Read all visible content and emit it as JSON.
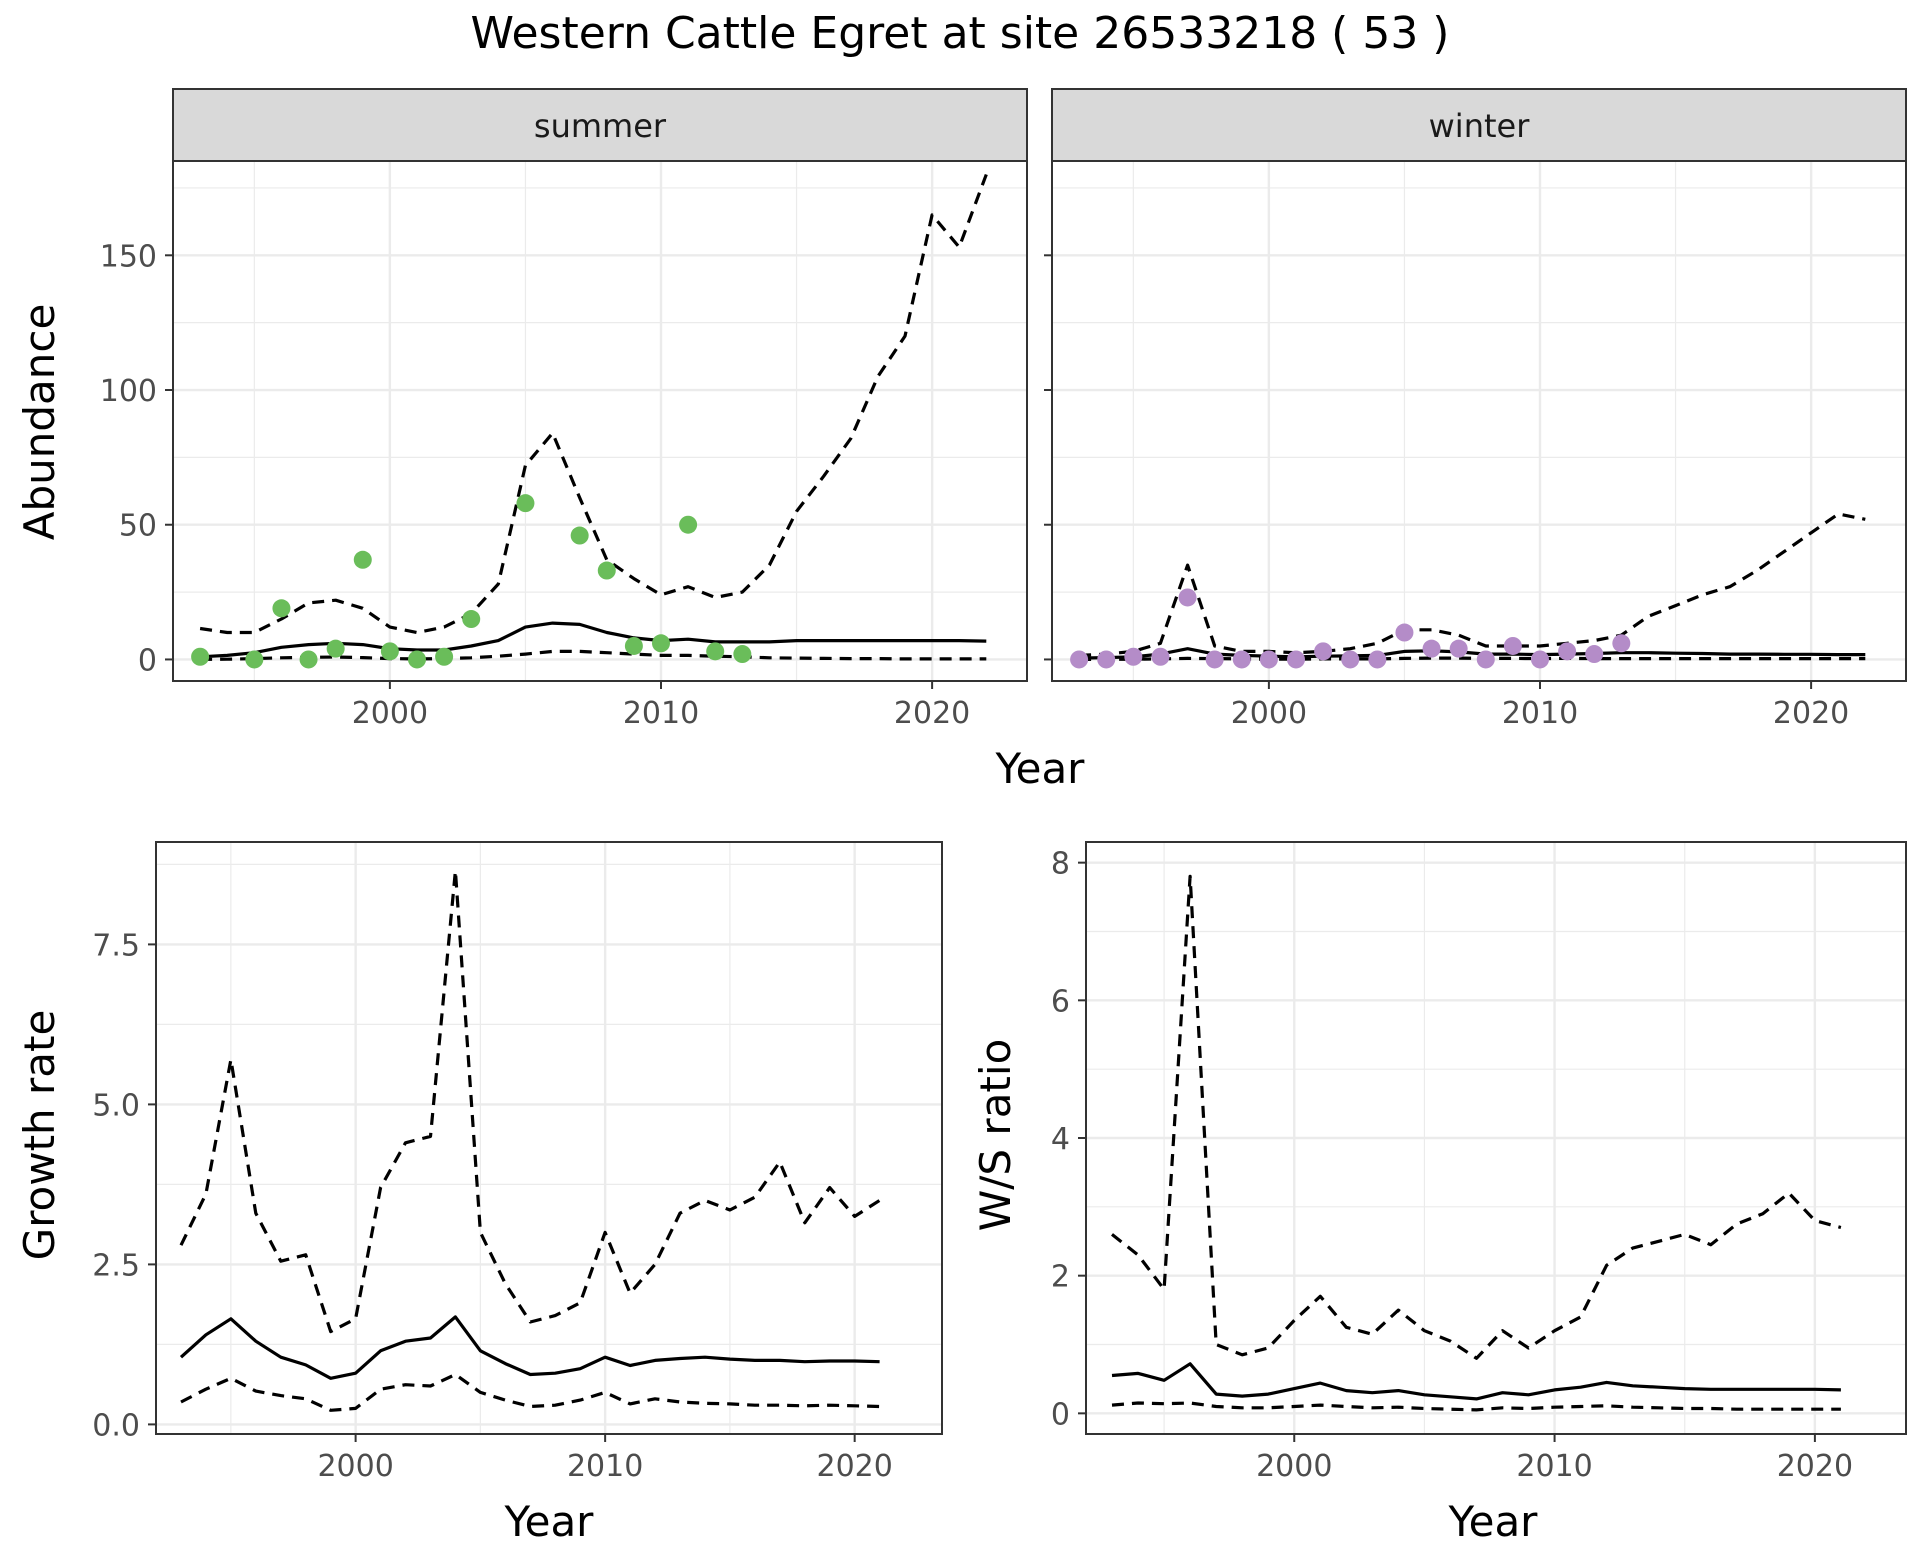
{
  "title": "Western Cattle Egret at site 26533218 ( 53 )",
  "colors": {
    "summer_points": "#6abd5a",
    "winter_points": "#b48cc8",
    "line": "#000000",
    "strip_fill": "#d9d9d9",
    "grid": "#ebebeb"
  },
  "chart_data": [
    {
      "type": "scatter",
      "panel": "summer",
      "xlabel": "Year",
      "ylabel": "Abundance",
      "xlim": [
        1992,
        2023.5
      ],
      "ylim": [
        -8,
        185
      ],
      "x_ticks": [
        2000,
        2010,
        2020
      ],
      "y_ticks": [
        0,
        50,
        100,
        150
      ],
      "grid": true,
      "points": {
        "x": [
          1993,
          1995,
          1996,
          1997,
          1998,
          1999,
          2000,
          2001,
          2002,
          2003,
          2005,
          2007,
          2008,
          2009,
          2010,
          2011,
          2012,
          2013
        ],
        "y": [
          1,
          0,
          19,
          0,
          4,
          37,
          3,
          0,
          1,
          15,
          58,
          46,
          33,
          5,
          6,
          50,
          3,
          2
        ]
      },
      "series": [
        {
          "role": "estimate",
          "style": "solid",
          "x": [
            1993,
            1994,
            1995,
            1996,
            1997,
            1998,
            1999,
            2000,
            2001,
            2002,
            2003,
            2004,
            2005,
            2006,
            2007,
            2008,
            2009,
            2010,
            2011,
            2012,
            2013,
            2014,
            2015,
            2016,
            2017,
            2018,
            2019,
            2020,
            2021,
            2022
          ],
          "y": [
            1,
            1.5,
            2.5,
            4.5,
            5.5,
            6,
            5.5,
            4,
            3.5,
            3.5,
            5,
            7,
            12,
            13.5,
            13,
            10,
            8,
            7,
            7.5,
            6.5,
            6.5,
            6.5,
            7,
            7,
            7,
            7,
            7,
            7,
            7,
            6.8
          ]
        },
        {
          "role": "upper",
          "style": "dashed",
          "x": [
            1993,
            1994,
            1995,
            1996,
            1997,
            1998,
            1999,
            2000,
            2001,
            2002,
            2003,
            2004,
            2005,
            2006,
            2007,
            2008,
            2009,
            2010,
            2011,
            2012,
            2013,
            2014,
            2015,
            2016,
            2017,
            2018,
            2019,
            2020,
            2021,
            2022
          ],
          "y": [
            11.5,
            10,
            10,
            15,
            21,
            22,
            19,
            12,
            10,
            12,
            17,
            28,
            72,
            84,
            60,
            37,
            30,
            24,
            27,
            23,
            25,
            35,
            55,
            68,
            82,
            105,
            120,
            165,
            153,
            180
          ]
        },
        {
          "role": "lower",
          "style": "dashed",
          "x": [
            1993,
            1994,
            1995,
            1996,
            1997,
            1998,
            1999,
            2000,
            2001,
            2002,
            2003,
            2004,
            2005,
            2006,
            2007,
            2008,
            2009,
            2010,
            2011,
            2012,
            2013,
            2014,
            2015,
            2016,
            2017,
            2018,
            2019,
            2020,
            2021,
            2022
          ],
          "y": [
            0,
            0.1,
            0.3,
            0.6,
            0.8,
            0.9,
            0.7,
            0.3,
            0.2,
            0.3,
            0.6,
            1.2,
            2,
            3,
            3,
            2.5,
            2,
            1.5,
            1.5,
            1.2,
            1,
            0.6,
            0.5,
            0.4,
            0.3,
            0.3,
            0.2,
            0.2,
            0.2,
            0.2
          ]
        }
      ]
    },
    {
      "type": "scatter",
      "panel": "winter",
      "xlabel": "Year",
      "ylabel": "Abundance",
      "xlim": [
        1992,
        2023.5
      ],
      "ylim": [
        -8,
        185
      ],
      "x_ticks": [
        2000,
        2010,
        2020
      ],
      "y_ticks": [
        0,
        50,
        100,
        150
      ],
      "grid": true,
      "points": {
        "x": [
          1993,
          1994,
          1995,
          1996,
          1997,
          1998,
          1999,
          2000,
          2001,
          2002,
          2003,
          2004,
          2005,
          2006,
          2007,
          2008,
          2009,
          2010,
          2011,
          2012,
          2013
        ],
        "y": [
          0,
          0,
          1,
          1,
          23,
          0,
          0,
          0,
          0,
          3,
          0,
          0,
          10,
          4,
          4,
          0,
          5,
          0,
          3,
          2,
          6
        ]
      },
      "series": [
        {
          "role": "estimate",
          "style": "solid",
          "x": [
            1993,
            1994,
            1995,
            1996,
            1997,
            1998,
            1999,
            2000,
            2001,
            2002,
            2003,
            2004,
            2005,
            2006,
            2007,
            2008,
            2009,
            2010,
            2011,
            2012,
            2013,
            2014,
            2015,
            2016,
            2017,
            2018,
            2019,
            2020,
            2021,
            2022
          ],
          "y": [
            0.5,
            0.7,
            1,
            2,
            4,
            2,
            1.5,
            1.2,
            1,
            1.2,
            1.3,
            1.5,
            3,
            3.2,
            2.8,
            2,
            2,
            1.8,
            2,
            2.2,
            2.5,
            2.5,
            2.3,
            2.2,
            2,
            2,
            1.9,
            1.9,
            1.8,
            1.8
          ]
        },
        {
          "role": "upper",
          "style": "dashed",
          "x": [
            1993,
            1994,
            1995,
            1996,
            1997,
            1998,
            1999,
            2000,
            2001,
            2002,
            2003,
            2004,
            2005,
            2006,
            2007,
            2008,
            2009,
            2010,
            2011,
            2012,
            2013,
            2014,
            2015,
            2016,
            2017,
            2018,
            2019,
            2020,
            2021,
            2022
          ],
          "y": [
            1.5,
            2,
            3,
            6,
            35,
            5,
            3,
            3,
            2.5,
            3,
            4,
            6,
            11,
            11,
            9,
            5,
            5,
            5,
            6,
            7,
            9,
            16,
            20,
            24,
            27,
            33,
            40,
            47,
            54,
            52
          ]
        },
        {
          "role": "lower",
          "style": "dashed",
          "x": [
            1993,
            1994,
            1995,
            1996,
            1997,
            1998,
            1999,
            2000,
            2001,
            2002,
            2003,
            2004,
            2005,
            2006,
            2007,
            2008,
            2009,
            2010,
            2011,
            2012,
            2013,
            2014,
            2015,
            2016,
            2017,
            2018,
            2019,
            2020,
            2021,
            2022
          ],
          "y": [
            0,
            0,
            0.1,
            0.2,
            0.4,
            0.3,
            0.2,
            0.1,
            0.1,
            0.2,
            0.2,
            0.2,
            0.4,
            0.5,
            0.5,
            0.4,
            0.4,
            0.3,
            0.4,
            0.3,
            0.3,
            0.3,
            0.3,
            0.3,
            0.3,
            0.3,
            0.3,
            0.3,
            0.3,
            0.3
          ]
        }
      ]
    },
    {
      "type": "line",
      "panel": "growth",
      "xlabel": "Year",
      "ylabel": "Growth rate",
      "xlim": [
        1992,
        2023.5
      ],
      "ylim": [
        -0.15,
        9.1
      ],
      "x_ticks": [
        2000,
        2010,
        2020
      ],
      "y_ticks": [
        0.0,
        2.5,
        5.0,
        7.5
      ],
      "y_tick_labels": [
        "0.0",
        "2.5",
        "5.0",
        "7.5"
      ],
      "grid": true,
      "series": [
        {
          "role": "estimate",
          "style": "solid",
          "x": [
            1993,
            1994,
            1995,
            1996,
            1997,
            1998,
            1999,
            2000,
            2001,
            2002,
            2003,
            2004,
            2005,
            2006,
            2007,
            2008,
            2009,
            2010,
            2011,
            2012,
            2013,
            2014,
            2015,
            2016,
            2017,
            2018,
            2019,
            2020,
            2021
          ],
          "y": [
            1.05,
            1.4,
            1.65,
            1.3,
            1.05,
            0.93,
            0.72,
            0.8,
            1.15,
            1.3,
            1.35,
            1.68,
            1.15,
            0.95,
            0.78,
            0.8,
            0.87,
            1.05,
            0.92,
            1.0,
            1.03,
            1.05,
            1.02,
            1.0,
            1.0,
            0.98,
            0.99,
            0.99,
            0.98
          ]
        },
        {
          "role": "upper",
          "style": "dashed",
          "x": [
            1993,
            1994,
            1995,
            1996,
            1997,
            1998,
            1999,
            2000,
            2001,
            2002,
            2003,
            2004,
            2005,
            2006,
            2007,
            2008,
            2009,
            2010,
            2011,
            2012,
            2013,
            2014,
            2015,
            2016,
            2017,
            2018,
            2019,
            2020,
            2021
          ],
          "y": [
            2.8,
            3.6,
            5.7,
            3.3,
            2.55,
            2.65,
            1.45,
            1.65,
            3.7,
            4.4,
            4.5,
            8.65,
            3.0,
            2.2,
            1.6,
            1.7,
            1.9,
            3.0,
            2.05,
            2.5,
            3.3,
            3.5,
            3.35,
            3.55,
            4.1,
            3.15,
            3.7,
            3.25,
            3.5
          ]
        },
        {
          "role": "lower",
          "style": "dashed",
          "x": [
            1993,
            1994,
            1995,
            1996,
            1997,
            1998,
            1999,
            2000,
            2001,
            2002,
            2003,
            2004,
            2005,
            2006,
            2007,
            2008,
            2009,
            2010,
            2011,
            2012,
            2013,
            2014,
            2015,
            2016,
            2017,
            2018,
            2019,
            2020,
            2021
          ],
          "y": [
            0.35,
            0.55,
            0.72,
            0.52,
            0.45,
            0.4,
            0.22,
            0.25,
            0.55,
            0.62,
            0.6,
            0.78,
            0.5,
            0.38,
            0.28,
            0.3,
            0.38,
            0.5,
            0.32,
            0.4,
            0.35,
            0.33,
            0.32,
            0.3,
            0.3,
            0.29,
            0.3,
            0.29,
            0.28
          ]
        }
      ]
    },
    {
      "type": "line",
      "panel": "ratio",
      "xlabel": "Year",
      "ylabel": "W/S ratio",
      "xlim": [
        1992,
        2023.5
      ],
      "ylim": [
        -0.3,
        8.3
      ],
      "x_ticks": [
        2000,
        2010,
        2020
      ],
      "y_ticks": [
        0,
        2,
        4,
        6,
        8
      ],
      "grid": true,
      "series": [
        {
          "role": "estimate",
          "style": "solid",
          "x": [
            1993,
            1994,
            1995,
            1996,
            1997,
            1998,
            1999,
            2000,
            2001,
            2002,
            2003,
            2004,
            2005,
            2006,
            2007,
            2008,
            2009,
            2010,
            2011,
            2012,
            2013,
            2014,
            2015,
            2016,
            2017,
            2018,
            2019,
            2020,
            2021
          ],
          "y": [
            0.55,
            0.58,
            0.48,
            0.72,
            0.28,
            0.25,
            0.28,
            0.36,
            0.44,
            0.33,
            0.3,
            0.33,
            0.27,
            0.24,
            0.21,
            0.3,
            0.27,
            0.34,
            0.38,
            0.45,
            0.4,
            0.38,
            0.36,
            0.35,
            0.35,
            0.35,
            0.35,
            0.35,
            0.34
          ]
        },
        {
          "role": "upper",
          "style": "dashed",
          "x": [
            1993,
            1994,
            1995,
            1996,
            1997,
            1998,
            1999,
            2000,
            2001,
            2002,
            2003,
            2004,
            2005,
            2006,
            2007,
            2008,
            2009,
            2010,
            2011,
            2012,
            2013,
            2014,
            2015,
            2016,
            2017,
            2018,
            2019,
            2020,
            2021
          ],
          "y": [
            2.6,
            2.3,
            1.8,
            7.8,
            1.0,
            0.85,
            0.95,
            1.35,
            1.7,
            1.25,
            1.15,
            1.5,
            1.2,
            1.05,
            0.8,
            1.2,
            0.95,
            1.2,
            1.4,
            2.15,
            2.4,
            2.5,
            2.6,
            2.45,
            2.75,
            2.9,
            3.2,
            2.8,
            2.7
          ]
        },
        {
          "role": "lower",
          "style": "dashed",
          "x": [
            1993,
            1994,
            1995,
            1996,
            1997,
            1998,
            1999,
            2000,
            2001,
            2002,
            2003,
            2004,
            2005,
            2006,
            2007,
            2008,
            2009,
            2010,
            2011,
            2012,
            2013,
            2014,
            2015,
            2016,
            2017,
            2018,
            2019,
            2020,
            2021
          ],
          "y": [
            0.12,
            0.15,
            0.14,
            0.15,
            0.1,
            0.08,
            0.08,
            0.1,
            0.12,
            0.1,
            0.08,
            0.09,
            0.07,
            0.06,
            0.05,
            0.08,
            0.07,
            0.09,
            0.1,
            0.11,
            0.09,
            0.08,
            0.07,
            0.07,
            0.06,
            0.06,
            0.06,
            0.06,
            0.06
          ]
        }
      ]
    }
  ]
}
